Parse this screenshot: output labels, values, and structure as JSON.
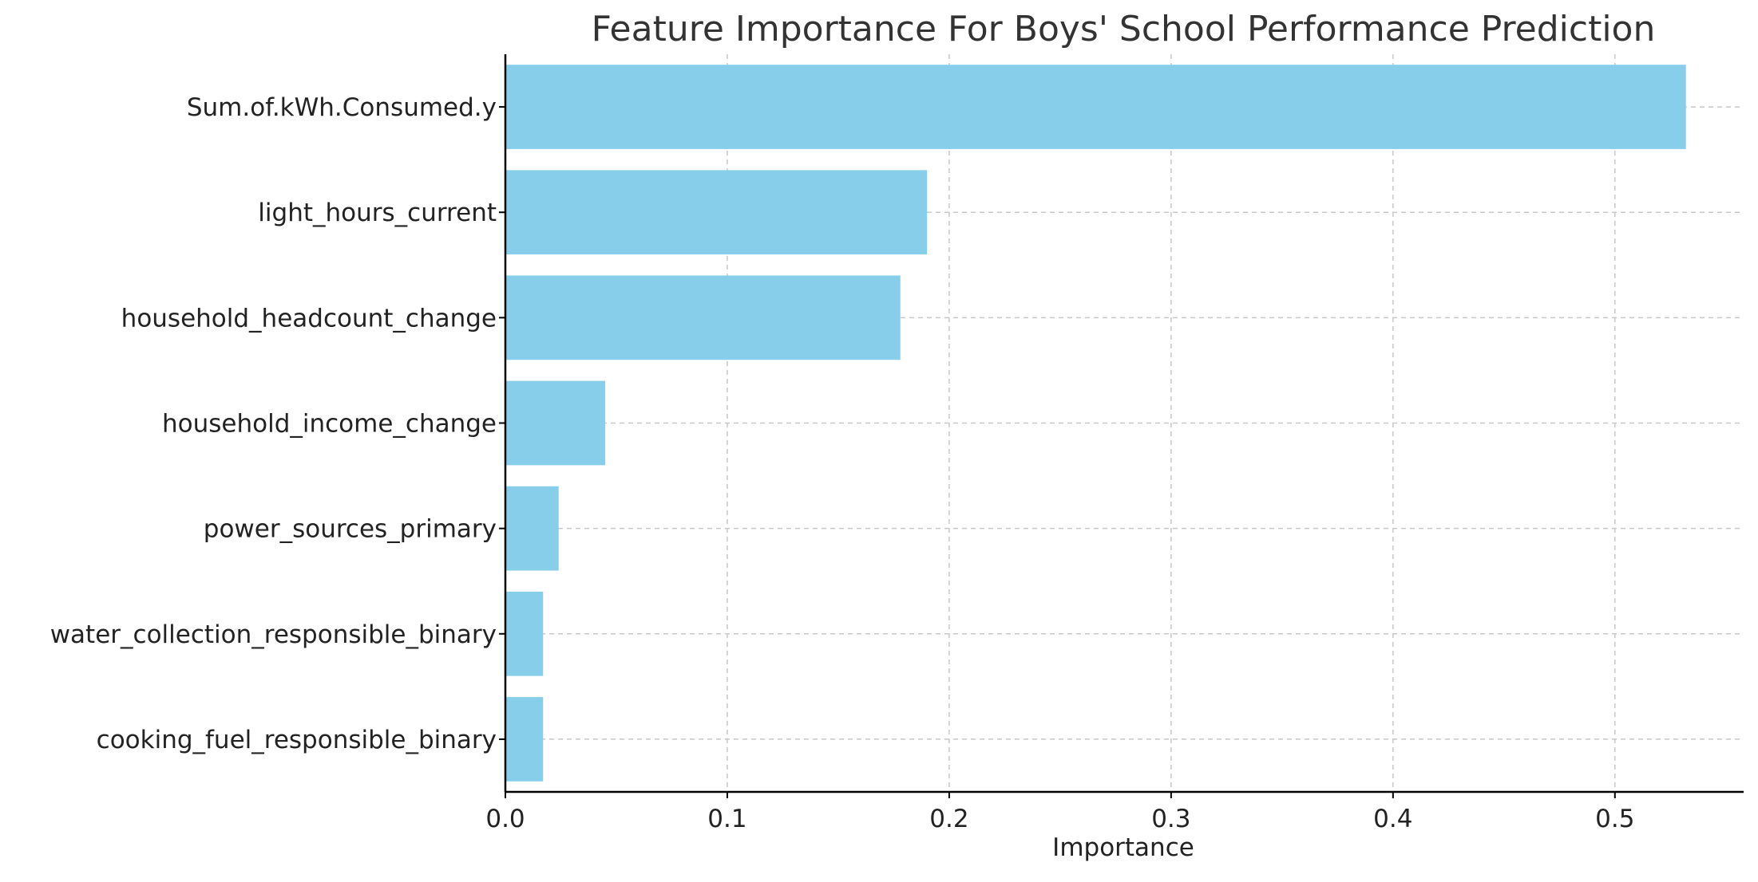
{
  "chart_data": {
    "type": "bar",
    "orientation": "horizontal",
    "title": "Feature Importance For Boys' School Performance Prediction",
    "xlabel": "Importance",
    "ylabel": "",
    "categories": [
      "Sum.of.kWh.Consumed.y",
      "light_hours_current",
      "household_headcount_change",
      "household_income_change",
      "power_sources_primary",
      "water_collection_responsible_binary",
      "cooking_fuel_responsible_binary"
    ],
    "values": [
      0.532,
      0.19,
      0.178,
      0.045,
      0.024,
      0.017,
      0.017
    ],
    "xlim": [
      0,
      0.558
    ],
    "xticks": [
      0.0,
      0.1,
      0.2,
      0.3,
      0.4,
      0.5
    ],
    "xtick_labels": [
      "0.0",
      "0.1",
      "0.2",
      "0.3",
      "0.4",
      "0.5"
    ],
    "grid": true,
    "bar_color": "#87ceeb",
    "legend": "none"
  }
}
